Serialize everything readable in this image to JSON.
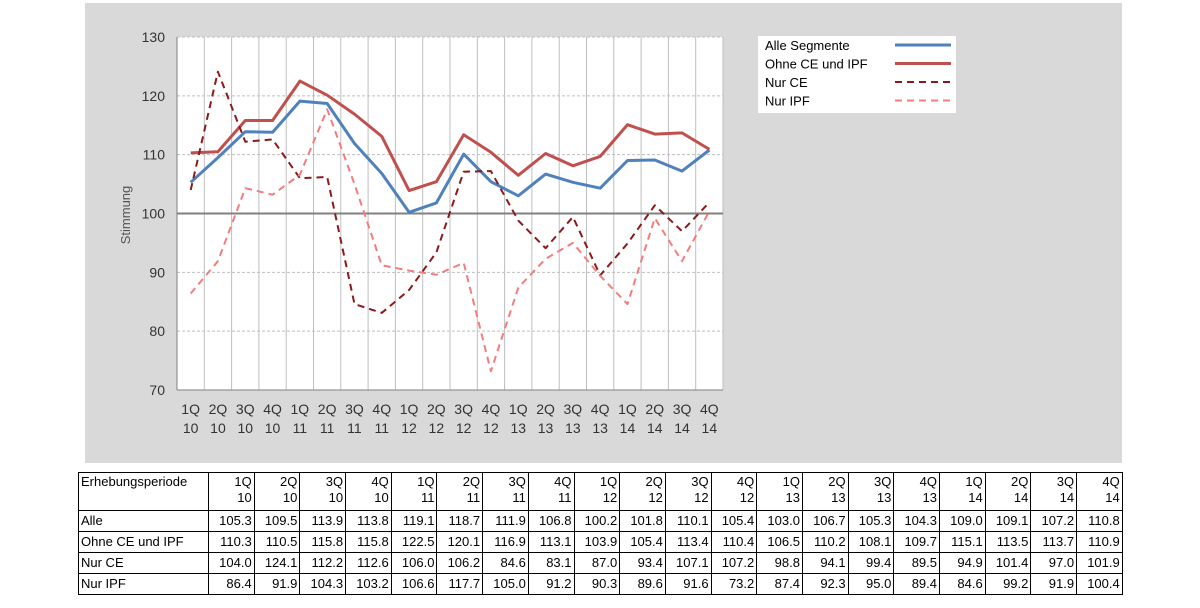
{
  "chart_data": {
    "type": "line",
    "title": "",
    "xlabel": "",
    "ylabel": "Stimmung",
    "ylim": [
      70,
      130
    ],
    "yticks": [
      70,
      80,
      90,
      100,
      110,
      120,
      130
    ],
    "reference_line": 100,
    "grid": true,
    "legend_position": "top-right",
    "categories": [
      {
        "q": "1Q",
        "y": "10"
      },
      {
        "q": "2Q",
        "y": "10"
      },
      {
        "q": "3Q",
        "y": "10"
      },
      {
        "q": "4Q",
        "y": "10"
      },
      {
        "q": "1Q",
        "y": "11"
      },
      {
        "q": "2Q",
        "y": "11"
      },
      {
        "q": "3Q",
        "y": "11"
      },
      {
        "q": "4Q",
        "y": "11"
      },
      {
        "q": "1Q",
        "y": "12"
      },
      {
        "q": "2Q",
        "y": "12"
      },
      {
        "q": "3Q",
        "y": "12"
      },
      {
        "q": "4Q",
        "y": "12"
      },
      {
        "q": "1Q",
        "y": "13"
      },
      {
        "q": "2Q",
        "y": "13"
      },
      {
        "q": "3Q",
        "y": "13"
      },
      {
        "q": "4Q",
        "y": "13"
      },
      {
        "q": "1Q",
        "y": "14"
      },
      {
        "q": "2Q",
        "y": "14"
      },
      {
        "q": "3Q",
        "y": "14"
      },
      {
        "q": "4Q",
        "y": "14"
      }
    ],
    "series": [
      {
        "name": "Alle Segmente",
        "color": "#4f81bd",
        "style": "solid",
        "values": [
          105.3,
          109.5,
          113.9,
          113.8,
          119.1,
          118.7,
          111.9,
          106.8,
          100.2,
          101.8,
          110.1,
          105.4,
          103.0,
          106.7,
          105.3,
          104.3,
          109.0,
          109.1,
          107.2,
          110.8
        ]
      },
      {
        "name": "Ohne CE und IPF",
        "color": "#c0504d",
        "style": "solid",
        "values": [
          110.3,
          110.5,
          115.8,
          115.8,
          122.5,
          120.1,
          116.9,
          113.1,
          103.9,
          105.4,
          113.4,
          110.4,
          106.5,
          110.2,
          108.1,
          109.7,
          115.1,
          113.5,
          113.7,
          110.9
        ]
      },
      {
        "name": "Nur CE",
        "color": "#8b1a1a",
        "style": "dashed",
        "values": [
          104.0,
          124.1,
          112.2,
          112.6,
          106.0,
          106.2,
          84.6,
          83.1,
          87.0,
          93.4,
          107.1,
          107.2,
          98.8,
          94.1,
          99.4,
          89.5,
          94.9,
          101.4,
          97.0,
          101.9
        ]
      },
      {
        "name": "Nur IPF",
        "color": "#f47c7c",
        "style": "dashed",
        "values": [
          86.4,
          91.9,
          104.3,
          103.2,
          106.6,
          117.7,
          105.0,
          91.2,
          90.3,
          89.6,
          91.6,
          73.2,
          87.4,
          92.3,
          95.0,
          89.4,
          84.6,
          99.2,
          91.9,
          100.4
        ]
      }
    ]
  },
  "table": {
    "header_label": "Erhebungsperiode",
    "rows": [
      {
        "label": "Alle",
        "values": [
          "105.3",
          "109.5",
          "113.9",
          "113.8",
          "119.1",
          "118.7",
          "111.9",
          "106.8",
          "100.2",
          "101.8",
          "110.1",
          "105.4",
          "103.0",
          "106.7",
          "105.3",
          "104.3",
          "109.0",
          "109.1",
          "107.2",
          "110.8"
        ]
      },
      {
        "label": "Ohne CE und IPF",
        "values": [
          "110.3",
          "110.5",
          "115.8",
          "115.8",
          "122.5",
          "120.1",
          "116.9",
          "113.1",
          "103.9",
          "105.4",
          "113.4",
          "110.4",
          "106.5",
          "110.2",
          "108.1",
          "109.7",
          "115.1",
          "113.5",
          "113.7",
          "110.9"
        ]
      },
      {
        "label": "Nur CE",
        "values": [
          "104.0",
          "124.1",
          "112.2",
          "112.6",
          "106.0",
          "106.2",
          "84.6",
          "83.1",
          "87.0",
          "93.4",
          "107.1",
          "107.2",
          "98.8",
          "94.1",
          "99.4",
          "89.5",
          "94.9",
          "101.4",
          "97.0",
          "101.9"
        ]
      },
      {
        "label": "Nur IPF",
        "values": [
          "86.4",
          "91.9",
          "104.3",
          "103.2",
          "106.6",
          "117.7",
          "105.0",
          "91.2",
          "90.3",
          "89.6",
          "91.6",
          "73.2",
          "87.4",
          "92.3",
          "95.0",
          "89.4",
          "84.6",
          "99.2",
          "91.9",
          "100.4"
        ]
      }
    ]
  }
}
